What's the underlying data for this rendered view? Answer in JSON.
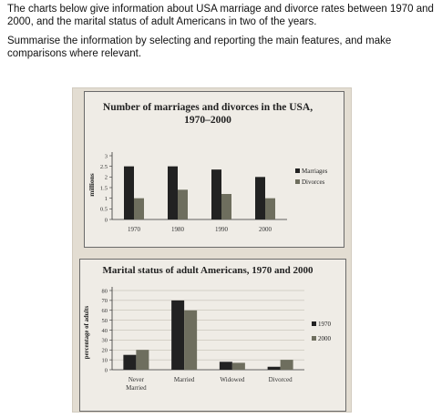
{
  "intro": {
    "line1": "The charts below give information about USA marriage and divorce rates between 1970 and 2000, and the marital status of adult Americans in two of the years.",
    "line2": "Summarise the information by selecting and reporting the main features, and make comparisons where relevant."
  },
  "colors": {
    "dark": "#222222",
    "light": "#6e6e5e",
    "axis": "#333333",
    "grid": "#b8b3a8"
  },
  "chart_data": [
    {
      "type": "bar",
      "title": "Number of marriages and divorces in the USA, 1970–2000",
      "title_line1": "Number of marriages and divorces in the USA,",
      "title_line2": "1970–2000",
      "ylabel": "millions",
      "xlabel": "",
      "categories": [
        "1970",
        "1980",
        "1990",
        "2000"
      ],
      "yticks": [
        "0",
        "0.5",
        "1",
        "1.5",
        "2",
        "2.5",
        "3"
      ],
      "ylim": [
        0,
        3
      ],
      "series": [
        {
          "name": "Marriages",
          "values": [
            2.5,
            2.5,
            2.35,
            2.0
          ]
        },
        {
          "name": "Divorces",
          "values": [
            1.0,
            1.4,
            1.2,
            1.0
          ]
        }
      ],
      "legend": "right",
      "grid": false
    },
    {
      "type": "bar",
      "title": "Marital status of adult Americans, 1970 and 2000",
      "ylabel": "percentage of adults",
      "xlabel": "",
      "categories": [
        "Never Married",
        "Married",
        "Widowed",
        "Divorced"
      ],
      "category_lines": [
        [
          "Never",
          "Married"
        ],
        [
          "Married"
        ],
        [
          "Widowed"
        ],
        [
          "Divorced"
        ]
      ],
      "yticks": [
        "0",
        "10",
        "20",
        "30",
        "40",
        "50",
        "60",
        "70",
        "80"
      ],
      "ylim": [
        0,
        80
      ],
      "series": [
        {
          "name": "1970",
          "values": [
            15,
            70,
            8,
            3
          ]
        },
        {
          "name": "2000",
          "values": [
            20,
            60,
            7,
            10
          ]
        }
      ],
      "legend": "right",
      "grid": true
    }
  ]
}
